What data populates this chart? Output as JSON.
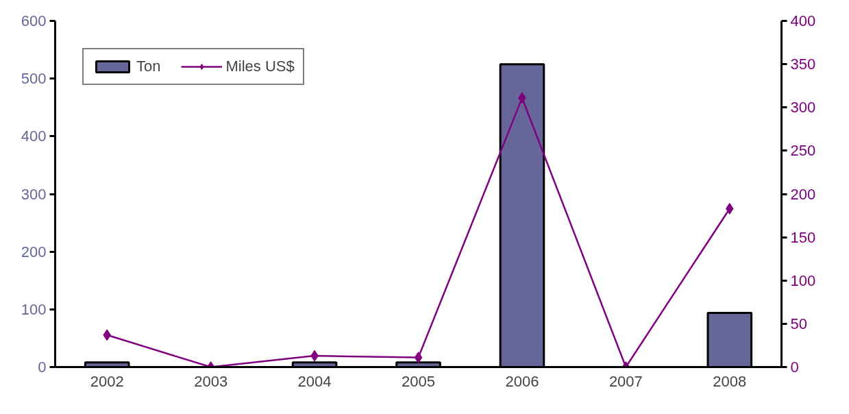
{
  "chart_data": {
    "type": "bar",
    "categories": [
      "2002",
      "2003",
      "2004",
      "2005",
      "2006",
      "2007",
      "2008"
    ],
    "series": [
      {
        "name": "Ton",
        "color": "#666699",
        "values": [
          8,
          null,
          8,
          8,
          525,
          null,
          94
        ]
      },
      {
        "name": "Miles US$",
        "type": "line",
        "axis": "y2",
        "color": "#800080",
        "marker": "diamond",
        "values": [
          37,
          0,
          13,
          11,
          311,
          0,
          183
        ]
      }
    ],
    "ylim": [
      0,
      600
    ],
    "yticks": [
      0,
      100,
      200,
      300,
      400,
      500,
      600
    ],
    "y2lim": [
      0,
      400
    ],
    "y2ticks": [
      0,
      50,
      100,
      150,
      200,
      250,
      300,
      350,
      400
    ],
    "legend": "top left",
    "grid": false
  }
}
